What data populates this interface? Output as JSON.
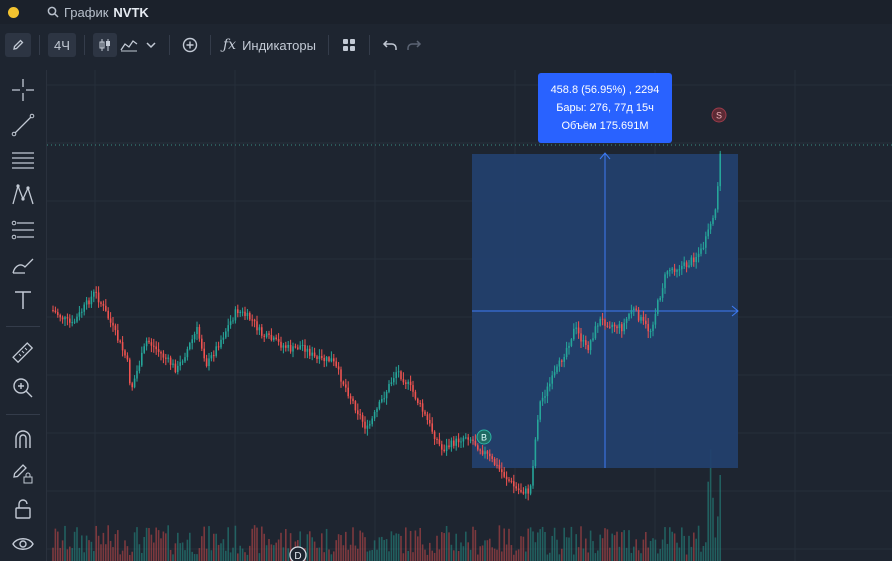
{
  "titlebar": {
    "title_prefix": "График",
    "symbol": "NVTK"
  },
  "toolbar": {
    "timeframe": "4Ч",
    "indicators_label": "Индикаторы"
  },
  "measure_tooltip": {
    "line1": "458.8 (56.95%) , 2294",
    "line2": "Бары: 276, 77д 15ч",
    "line3": "Объём 175.691M"
  },
  "markers": {
    "buy": "B",
    "sell": "S",
    "dividend": "D"
  },
  "colors": {
    "up": "#26a69a",
    "down": "#ef5350",
    "accent": "#2962ff",
    "background": "#1e2530",
    "measure_fill": "#23406f",
    "measure_line": "#3d7bf5"
  },
  "icons": [
    "pencil-icon",
    "crosshair-icon",
    "trend-line-icon",
    "fib-icon",
    "pattern-icon",
    "gann-icon",
    "brush-icon",
    "text-icon",
    "ruler-icon",
    "zoom-icon",
    "magnet-icon",
    "lock-draw-icon",
    "lock-icon",
    "eye-icon",
    "undo-icon",
    "redo-icon",
    "search-icon",
    "plus-circle-icon",
    "layout-icon"
  ]
}
